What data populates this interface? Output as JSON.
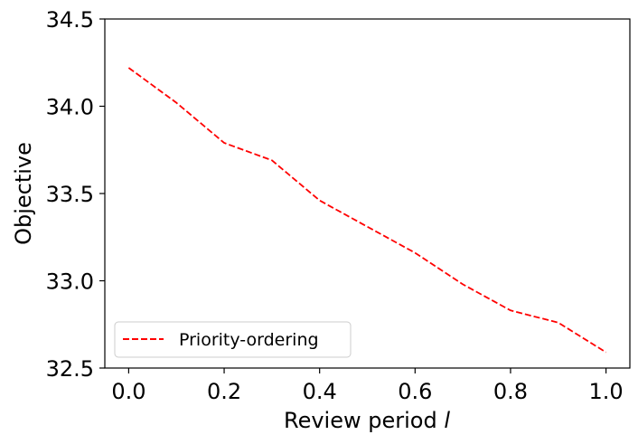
{
  "chart_data": {
    "type": "line",
    "title": "",
    "xlabel": "Review period",
    "xlabel_symbol": "l",
    "ylabel": "Objective",
    "xlim": [
      -0.05,
      1.05
    ],
    "ylim": [
      32.5,
      34.5
    ],
    "xticks": [
      "0.0",
      "0.2",
      "0.4",
      "0.6",
      "0.8",
      "1.0"
    ],
    "yticks": [
      "32.5",
      "33.0",
      "33.5",
      "34.0",
      "34.5"
    ],
    "grid": false,
    "legend_position": "lower-left",
    "series": [
      {
        "name": "Priority-ordering",
        "color": "#ff0000",
        "line_style": "dashed",
        "x": [
          0.0,
          0.1,
          0.2,
          0.3,
          0.4,
          0.5,
          0.6,
          0.7,
          0.8,
          0.9,
          1.0
        ],
        "y": [
          34.22,
          34.02,
          33.79,
          33.69,
          33.46,
          33.31,
          33.16,
          32.98,
          32.83,
          32.76,
          32.59
        ]
      }
    ]
  }
}
